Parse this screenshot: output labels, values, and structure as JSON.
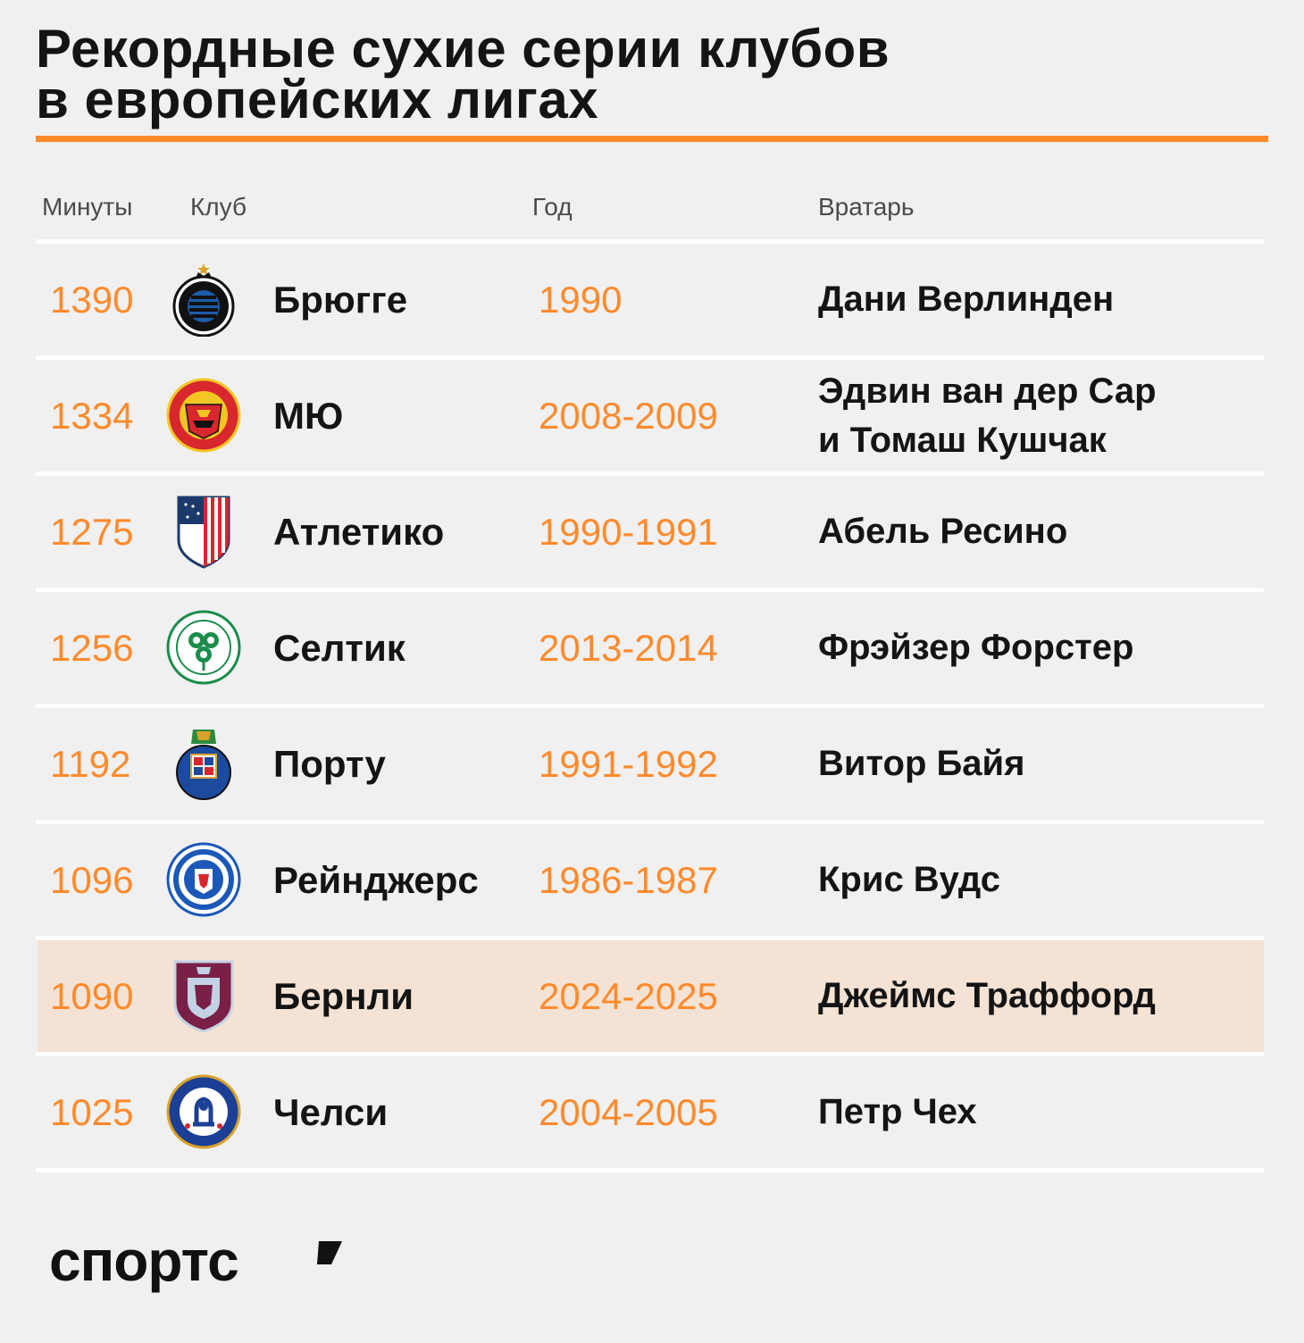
{
  "chart_data": {
    "type": "table",
    "title_lines": [
      "Рекордные сухие серии клубов",
      "в европейских лигах"
    ],
    "columns": [
      "Минуты",
      "Клуб",
      "Год",
      "Вратарь"
    ],
    "rows": [
      {
        "minutes": "1390",
        "club": "Брюгге",
        "logo": "club-brugge-crest-icon",
        "year": "1990",
        "keeper_lines": [
          "Дани Верлинден"
        ],
        "highlight": false
      },
      {
        "minutes": "1334",
        "club": "МЮ",
        "logo": "manchester-united-crest-icon",
        "year": "2008-2009",
        "keeper_lines": [
          "Эдвин ван дер Сар",
          "и Томаш Кушчак"
        ],
        "highlight": false
      },
      {
        "minutes": "1275",
        "club": "Атлетико",
        "logo": "atletico-madrid-crest-icon",
        "year": "1990-1991",
        "keeper_lines": [
          "Абель Ресино"
        ],
        "highlight": false
      },
      {
        "minutes": "1256",
        "club": "Селтик",
        "logo": "celtic-crest-icon",
        "year": "2013-2014",
        "keeper_lines": [
          "Фрэйзер Форстер"
        ],
        "highlight": false
      },
      {
        "minutes": "1192",
        "club": "Порту",
        "logo": "porto-crest-icon",
        "year": "1991-1992",
        "keeper_lines": [
          "Витор Байя"
        ],
        "highlight": false
      },
      {
        "minutes": "1096",
        "club": "Рейнджерс",
        "logo": "rangers-crest-icon",
        "year": "1986-1987",
        "keeper_lines": [
          "Крис Вудс"
        ],
        "highlight": false
      },
      {
        "minutes": "1090",
        "club": "Бернли",
        "logo": "burnley-crest-icon",
        "year": "2024-2025",
        "keeper_lines": [
          "Джеймс Траффорд"
        ],
        "highlight": true
      },
      {
        "minutes": "1025",
        "club": "Челси",
        "logo": "chelsea-crest-icon",
        "year": "2004-2005",
        "keeper_lines": [
          "Петр Чех"
        ],
        "highlight": false
      }
    ]
  },
  "brand": {
    "name": "спортс’",
    "icon": "sports-ru-logo-icon"
  },
  "colors": {
    "accent": "#ff8a2c",
    "background": "#f0f0f0",
    "highlight_row": "#f4e3d4",
    "divider": "#ffffff",
    "text": "#141414"
  }
}
